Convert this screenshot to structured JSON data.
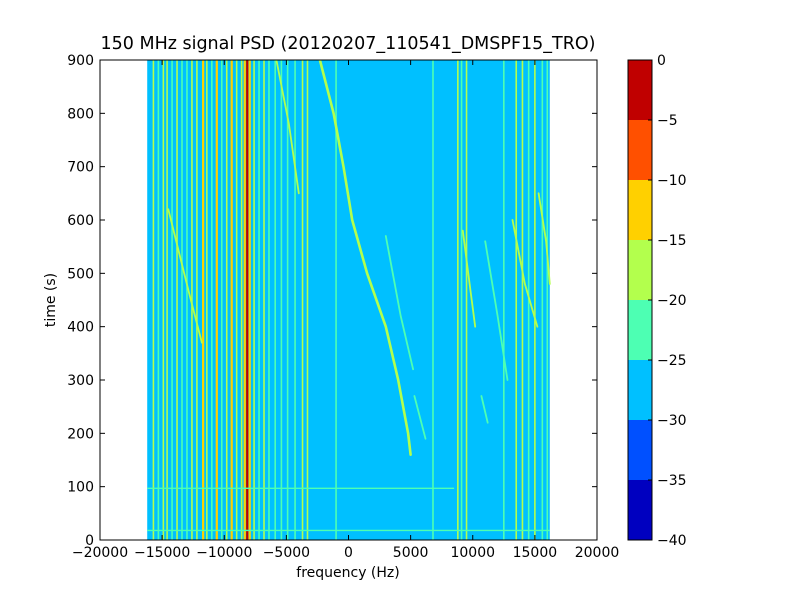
{
  "chart_data": {
    "type": "heatmap",
    "title": "150 MHz signal PSD (20120207_110541_DMSPF15_TRO)",
    "xlabel": "frequency (Hz)",
    "ylabel": "time (s)",
    "xlim": [
      -20000,
      20000
    ],
    "ylim": [
      0,
      900
    ],
    "x_ticks": [
      -20000,
      -15000,
      -10000,
      -5000,
      0,
      5000,
      10000,
      15000,
      20000
    ],
    "x_tick_labels": [
      "−20000",
      "−15000",
      "−10000",
      "−5000",
      "0",
      "5000",
      "10000",
      "15000",
      "20000"
    ],
    "y_ticks": [
      0,
      100,
      200,
      300,
      400,
      500,
      600,
      700,
      800,
      900
    ],
    "y_tick_labels": [
      "0",
      "100",
      "200",
      "300",
      "400",
      "500",
      "600",
      "700",
      "800",
      "900"
    ],
    "data_extent_x": [
      -16200,
      16200
    ],
    "background_level": -27.5,
    "grid": false,
    "colorbar": {
      "levels": [
        -40,
        -35,
        -30,
        -25,
        -20,
        -15,
        -10,
        -5,
        0
      ],
      "tick_labels": [
        "−40",
        "−35",
        "−30",
        "−25",
        "−20",
        "−15",
        "−10",
        "−5",
        "0"
      ],
      "colors": [
        "#0000c0",
        "#0050ff",
        "#00c0ff",
        "#4dffb3",
        "#b3ff4d",
        "#ffd000",
        "#ff5000",
        "#c00000"
      ]
    },
    "vertical_lines": [
      {
        "f": -15700,
        "level": -20
      },
      {
        "f": -15300,
        "level": -22
      },
      {
        "f": -14900,
        "level": -20
      },
      {
        "f": -14600,
        "level": -18
      },
      {
        "f": -14200,
        "level": -22
      },
      {
        "f": -13800,
        "level": -20
      },
      {
        "f": -13400,
        "level": -22
      },
      {
        "f": -13000,
        "level": -22
      },
      {
        "f": -12600,
        "level": -20
      },
      {
        "f": -12200,
        "level": -18
      },
      {
        "f": -11700,
        "level": -12
      },
      {
        "f": -11400,
        "level": -16
      },
      {
        "f": -11000,
        "level": -22
      },
      {
        "f": -10600,
        "level": -12
      },
      {
        "f": -10200,
        "level": -22
      },
      {
        "f": -9800,
        "level": -20
      },
      {
        "f": -9400,
        "level": -12
      },
      {
        "f": -9000,
        "level": -20
      },
      {
        "f": -8600,
        "level": -18
      },
      {
        "f": -8350,
        "level": -12
      },
      {
        "f": -8150,
        "level": -3
      },
      {
        "f": -7950,
        "level": -12
      },
      {
        "f": -7600,
        "level": -20
      },
      {
        "f": -7200,
        "level": -22
      },
      {
        "f": -6800,
        "level": -20
      },
      {
        "f": -6400,
        "level": -22
      },
      {
        "f": -5900,
        "level": -22
      },
      {
        "f": -5400,
        "level": -22
      },
      {
        "f": -4900,
        "level": -22
      },
      {
        "f": -4300,
        "level": -22
      },
      {
        "f": -3700,
        "level": -18
      },
      {
        "f": -3300,
        "level": -16
      },
      {
        "f": -1000,
        "level": -22
      },
      {
        "f": 6800,
        "level": -22
      },
      {
        "f": 8800,
        "level": -18
      },
      {
        "f": 9100,
        "level": -22
      },
      {
        "f": 9500,
        "level": -16
      },
      {
        "f": 12500,
        "level": -22
      },
      {
        "f": 13500,
        "level": -18
      },
      {
        "f": 14000,
        "level": -20
      },
      {
        "f": 14500,
        "level": -22
      },
      {
        "f": 15000,
        "level": -18
      },
      {
        "f": 15600,
        "level": -22
      },
      {
        "f": 16000,
        "level": -22
      }
    ],
    "horizontal_lines": [
      {
        "t": 97,
        "f_from": -16200,
        "f_to": 8500,
        "level": -22
      },
      {
        "t": 18,
        "f_from": -16200,
        "f_to": 16200,
        "level": -22
      }
    ],
    "doppler_trace": [
      {
        "f": -2300,
        "t": 900
      },
      {
        "f": -1200,
        "t": 800
      },
      {
        "f": -400,
        "t": 700
      },
      {
        "f": 300,
        "t": 600
      },
      {
        "f": 1500,
        "t": 500
      },
      {
        "f": 3000,
        "t": 400
      },
      {
        "f": 4000,
        "t": 300
      },
      {
        "f": 4800,
        "t": 200
      },
      {
        "f": 5000,
        "t": 160
      }
    ],
    "doppler_trace_level": -17,
    "secondary_traces": [
      {
        "points": [
          {
            "f": -14500,
            "t": 620
          },
          {
            "f": -12800,
            "t": 460
          },
          {
            "f": -11800,
            "t": 370
          }
        ],
        "level": -20
      },
      {
        "points": [
          {
            "f": -5800,
            "t": 900
          },
          {
            "f": -4800,
            "t": 780
          },
          {
            "f": -4000,
            "t": 650
          }
        ],
        "level": -17
      },
      {
        "points": [
          {
            "f": 9200,
            "t": 580
          },
          {
            "f": 9800,
            "t": 470
          },
          {
            "f": 10200,
            "t": 400
          }
        ],
        "level": -20
      },
      {
        "points": [
          {
            "f": 13200,
            "t": 600
          },
          {
            "f": 14200,
            "t": 480
          },
          {
            "f": 15200,
            "t": 400
          }
        ],
        "level": -20
      },
      {
        "points": [
          {
            "f": 15300,
            "t": 650
          },
          {
            "f": 15900,
            "t": 560
          },
          {
            "f": 16200,
            "t": 480
          }
        ],
        "level": -20
      },
      {
        "points": [
          {
            "f": 3000,
            "t": 570
          },
          {
            "f": 4200,
            "t": 420
          },
          {
            "f": 5200,
            "t": 320
          }
        ],
        "level": -24
      },
      {
        "points": [
          {
            "f": 11000,
            "t": 560
          },
          {
            "f": 12000,
            "t": 420
          },
          {
            "f": 12800,
            "t": 300
          }
        ],
        "level": -24
      },
      {
        "points": [
          {
            "f": 5300,
            "t": 270
          },
          {
            "f": 6200,
            "t": 190
          }
        ],
        "level": -24
      },
      {
        "points": [
          {
            "f": 10700,
            "t": 270
          },
          {
            "f": 11200,
            "t": 220
          }
        ],
        "level": -24
      }
    ]
  }
}
